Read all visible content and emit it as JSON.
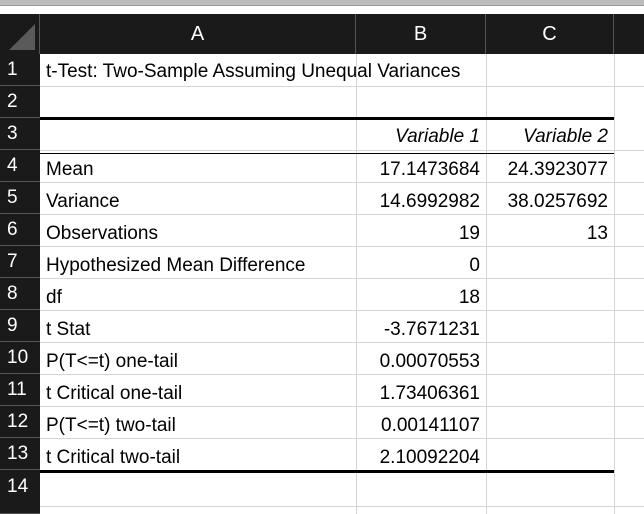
{
  "columns": [
    "A",
    "B",
    "C"
  ],
  "rows": [
    "1",
    "2",
    "3",
    "4",
    "5",
    "6",
    "7",
    "8",
    "9",
    "10",
    "11",
    "12",
    "13",
    "14"
  ],
  "title": "t-Test: Two-Sample Assuming Unequal Variances",
  "var_headers": [
    "Variable 1",
    "Variable 2"
  ],
  "table": [
    {
      "label": "Mean",
      "v1": "17.1473684",
      "v2": "24.3923077"
    },
    {
      "label": "Variance",
      "v1": "14.6992982",
      "v2": "38.0257692"
    },
    {
      "label": "Observations",
      "v1": "19",
      "v2": "13"
    },
    {
      "label": "Hypothesized Mean Difference",
      "v1": "0",
      "v2": ""
    },
    {
      "label": "df",
      "v1": "18",
      "v2": ""
    },
    {
      "label": "t Stat",
      "v1": "-3.7671231",
      "v2": ""
    },
    {
      "label": "P(T<=t) one-tail",
      "v1": "0.00070553",
      "v2": ""
    },
    {
      "label": "t Critical one-tail",
      "v1": "1.73406361",
      "v2": ""
    },
    {
      "label": "P(T<=t) two-tail",
      "v1": "0.00141107",
      "v2": ""
    },
    {
      "label": "t Critical two-tail",
      "v1": "2.10092204",
      "v2": ""
    }
  ]
}
